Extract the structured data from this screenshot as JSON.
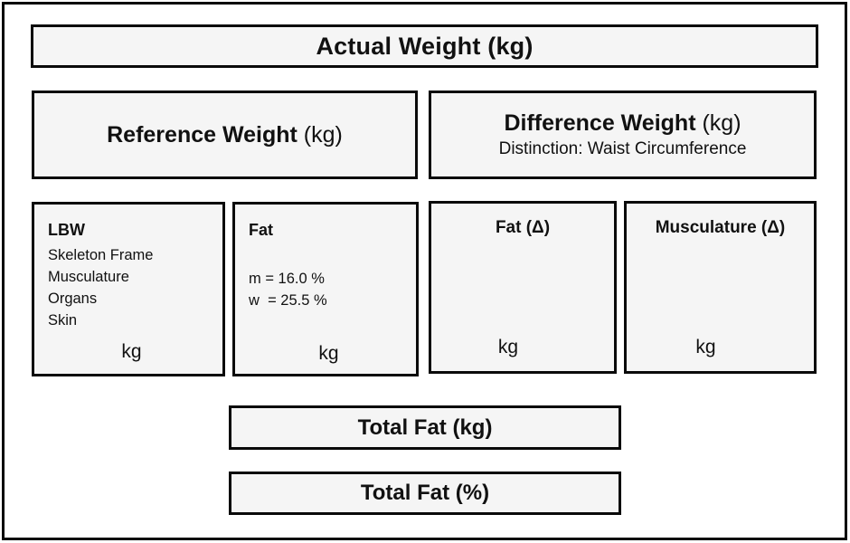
{
  "appearance": {
    "box_fill": "#f5f5f5",
    "border_color": "#0a0a0a",
    "background": "#ffffff",
    "text_color": "#111111"
  },
  "diagram": {
    "actual_weight": {
      "title": "Actual Weight (kg)"
    },
    "reference_weight": {
      "title": "Reference Weight",
      "unit": "(kg)"
    },
    "difference_weight": {
      "title": "Difference Weight",
      "unit": "(kg)",
      "subtitle": "Distinction: Waist Circumference"
    },
    "lbw": {
      "title": "LBW",
      "components": [
        "Skeleton Frame",
        "Musculature",
        "Organs",
        "Skin"
      ],
      "unit": "kg"
    },
    "fat": {
      "title": "Fat",
      "values": [
        "m = 16.0 %",
        "w  = 25.5 %"
      ],
      "unit": "kg"
    },
    "fat_delta": {
      "title": "Fat (Δ)",
      "unit": "kg"
    },
    "musculature_delta": {
      "title": "Musculature (Δ)",
      "unit": "kg"
    },
    "total_fat_kg": {
      "title": "Total Fat (kg)"
    },
    "total_fat_pct": {
      "title": "Total Fat (%)"
    }
  }
}
